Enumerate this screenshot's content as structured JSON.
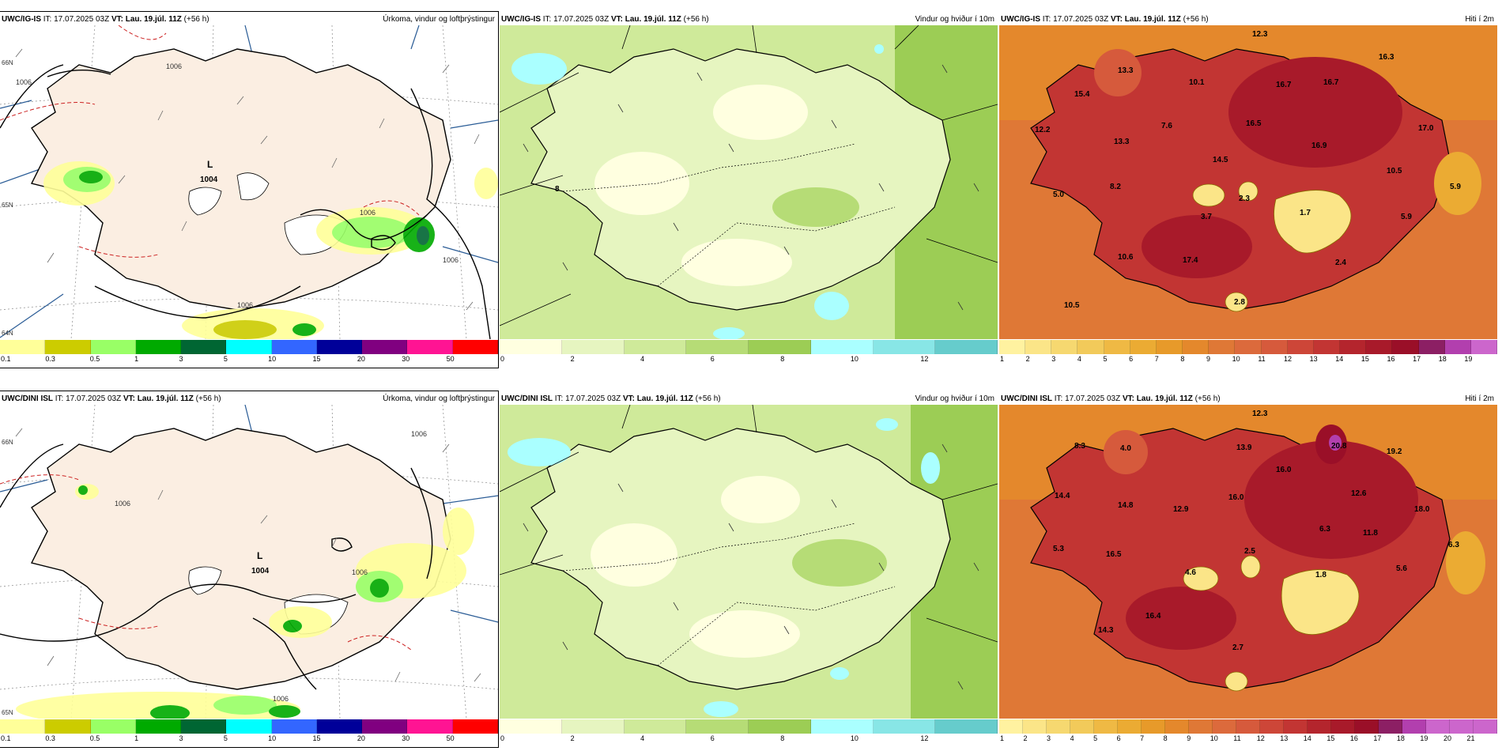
{
  "issue_time": "17.07.2025 03Z",
  "valid_time": "Lau. 19.júl. 11Z",
  "lead": "(+56 h)",
  "it_label": "IT:",
  "vt_label": "VT:",
  "colors": {
    "land_bg": "#fbeee2",
    "precip": [
      "#ffff99",
      "#cccc00",
      "#99ff66",
      "#00aa00",
      "#006633",
      "#00ffff",
      "#3366ff",
      "#000099",
      "#800080",
      "#ff1493",
      "#ff0000"
    ],
    "wind": [
      "#ffffe0",
      "#e6f5c0",
      "#cfea9a",
      "#b6dc76",
      "#9ccd55",
      "#aaffff",
      "#88e6e6",
      "#66cccc"
    ],
    "temp": [
      "#fff2a0",
      "#fbe588",
      "#f6d870",
      "#f2ca5a",
      "#efb944",
      "#ebab33",
      "#e79a2a",
      "#e4882c",
      "#df7836",
      "#dc6a3c",
      "#d65a3c",
      "#cd4638",
      "#c23533",
      "#b4252d",
      "#a81a2a",
      "#9a0f28",
      "#8c1f64",
      "#b23fae",
      "#cc66cc"
    ]
  },
  "rows": [
    {
      "model": "UWC/IG-IS",
      "panels": [
        {
          "title": "Úrkoma, vindur og loftþrýstingur",
          "type": "precip",
          "ticks": [
            "0.1",
            "0.3",
            "0.5",
            "1",
            "3",
            "5",
            "10",
            "15",
            "20",
            "30",
            "50"
          ],
          "low_letter": "L",
          "low_value": "1004",
          "isobars": [
            "1006",
            "1006",
            "1006",
            "1006",
            "1006"
          ],
          "lat_labels": [
            "66N",
            "65N",
            "64N"
          ]
        },
        {
          "title": "Vindur og hviður í 10m",
          "type": "wind",
          "ticks": [
            "0",
            "2",
            "4",
            "6",
            "8",
            "10",
            "12"
          ],
          "wind_extra": "8"
        },
        {
          "title": "Hiti í 2m",
          "type": "temp",
          "ticks": [
            "1",
            "2",
            "3",
            "4",
            "5",
            "6",
            "7",
            "8",
            "9",
            "10",
            "11",
            "12",
            "13",
            "14",
            "15",
            "16",
            "17",
            "18",
            "19"
          ],
          "temps": [
            "12.3",
            "16.3",
            "13.3",
            "10.1",
            "15.4",
            "16.7",
            "16.7",
            "12.2",
            "7.6",
            "16.5",
            "13.3",
            "17.0",
            "16.9",
            "14.5",
            "10.5",
            "8.2",
            "5.9",
            "5.0",
            "2.3",
            "3.7",
            "1.7",
            "5.9",
            "10.6",
            "17.4",
            "2.4",
            "10.5",
            "2.8"
          ]
        }
      ]
    },
    {
      "model": "UWC/DINI ISL",
      "panels": [
        {
          "title": "Úrkoma, vindur og loftþrýstingur",
          "type": "precip",
          "ticks": [
            "0.1",
            "0.3",
            "0.5",
            "1",
            "3",
            "5",
            "10",
            "15",
            "20",
            "30",
            "50"
          ],
          "low_letter": "L",
          "low_value": "1004",
          "isobars": [
            "1006",
            "1006",
            "1006",
            "1006"
          ],
          "lat_labels": [
            "66N",
            "65N"
          ]
        },
        {
          "title": "Vindur og hviður í 10m",
          "type": "wind",
          "ticks": [
            "0",
            "2",
            "4",
            "6",
            "8",
            "10",
            "12"
          ]
        },
        {
          "title": "Hiti í 2m",
          "type": "temp",
          "ticks": [
            "1",
            "2",
            "3",
            "4",
            "5",
            "6",
            "7",
            "8",
            "9",
            "10",
            "11",
            "12",
            "13",
            "14",
            "15",
            "16",
            "17",
            "18",
            "19",
            "20",
            "21"
          ],
          "temps": [
            "12.3",
            "8.3",
            "4.0",
            "13.9",
            "20.8",
            "19.2",
            "16.0",
            "14.4",
            "14.8",
            "12.9",
            "16.0",
            "12.6",
            "18.0",
            "6.3",
            "11.8",
            "6.3",
            "5.3",
            "16.5",
            "2.5",
            "4.6",
            "5.6",
            "1.8",
            "16.4",
            "14.3",
            "2.7"
          ]
        }
      ]
    }
  ]
}
